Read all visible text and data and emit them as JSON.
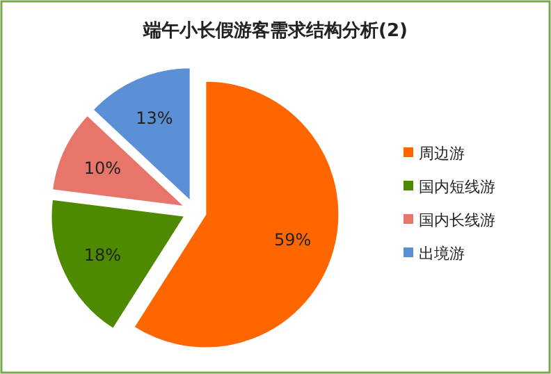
{
  "chart_data": {
    "type": "pie",
    "title": "端午小长假游客需求结构分析(2)",
    "categories": [
      "周边游",
      "国内短线游",
      "国内长线游",
      "出境游"
    ],
    "values": [
      59,
      18,
      10,
      13
    ],
    "colors": [
      "#ff6600",
      "#4e8a00",
      "#e8756a",
      "#5b8fd6"
    ],
    "value_labels": [
      "59%",
      "18%",
      "10%",
      "13%"
    ],
    "legend": "right"
  }
}
